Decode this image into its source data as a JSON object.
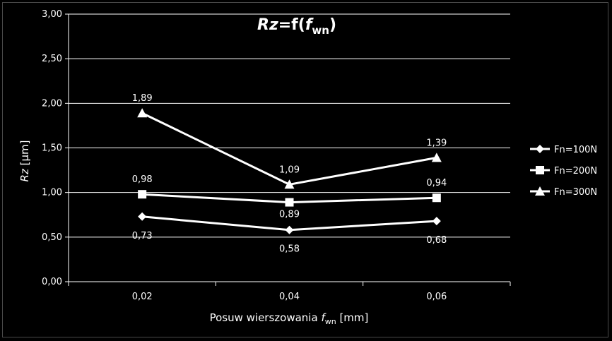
{
  "chart_data": {
    "type": "line",
    "title": {
      "main": "Rz",
      "eq": "=f(",
      "sym": "f",
      "sub": "wn",
      "close": ")"
    },
    "xlabel": {
      "prefix": "Posuw wierszowania ",
      "sym": "f",
      "sub": "wn",
      "suffix": " [mm]"
    },
    "ylabel": {
      "sym": "Rz",
      "unit": " [µm]"
    },
    "categories": [
      "0,02",
      "0,04",
      "0,06"
    ],
    "ylim": [
      0,
      3
    ],
    "yticks": [
      "0,00",
      "0,50",
      "1,00",
      "1,50",
      "2,00",
      "2,50",
      "3,00"
    ],
    "grid": true,
    "legend_position": "right",
    "series": [
      {
        "name": "Fn=100N",
        "marker": "diamond",
        "values": [
          0.73,
          0.58,
          0.68
        ],
        "labels": [
          "0,73",
          "0,58",
          "0,68"
        ]
      },
      {
        "name": "Fn=200N",
        "marker": "square",
        "values": [
          0.98,
          0.89,
          0.94
        ],
        "labels": [
          "0,98",
          "0,89",
          "0,94"
        ]
      },
      {
        "name": "Fn=300N",
        "marker": "triangle",
        "values": [
          1.89,
          1.09,
          1.39
        ],
        "labels": [
          "1,89",
          "1,09",
          "1,39"
        ]
      }
    ],
    "colors": {
      "background": "#000000",
      "line": "#ffffff",
      "grid": "#ffffff"
    }
  }
}
